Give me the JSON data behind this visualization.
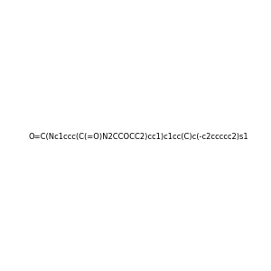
{
  "smiles": "O=C(Nc1ccc(C(=O)N2CCOCC2)cc1)c1cc(C)c(-c2ccccc2)s1",
  "image_size": 300,
  "background_color": "#f0f0f0",
  "atom_colors": {
    "S": "#cccc00",
    "N": "#0000ff",
    "O": "#ff0000"
  }
}
